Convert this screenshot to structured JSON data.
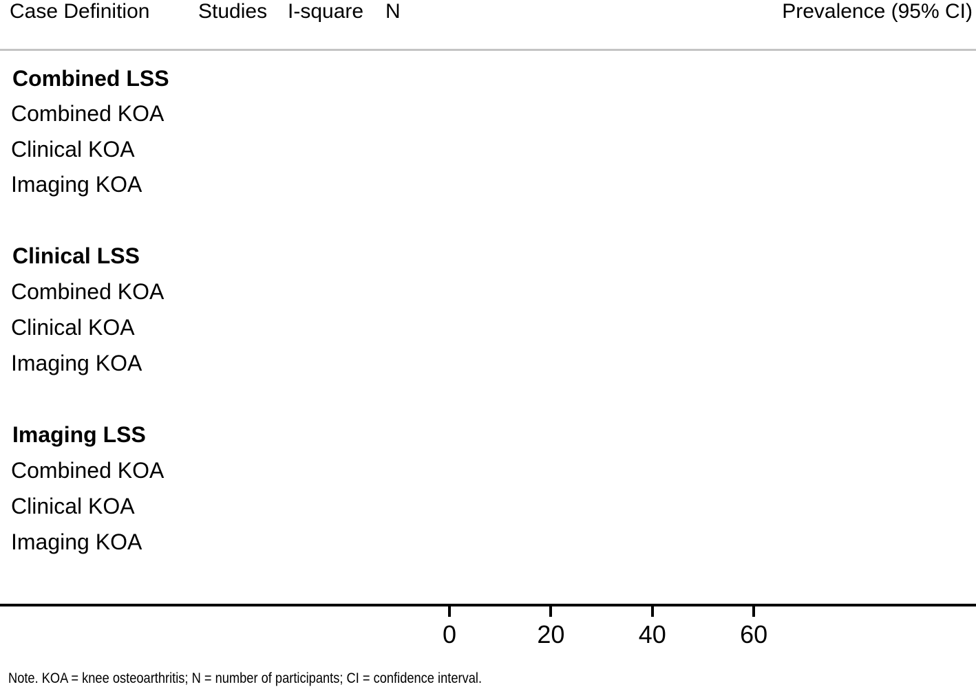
{
  "figure": {
    "header": {
      "case_definition": "Case Definition",
      "studies": "Studies",
      "i_square": "I-square",
      "n": "N",
      "prevalence": "Prevalence (95% CI)"
    },
    "note": "Note. KOA = knee osteoarthritis; N = number of participants; CI = confidence interval."
  },
  "rows": [
    {
      "label": "Combined LSS",
      "group": true
    },
    {
      "label": "Combined KOA",
      "group": false
    },
    {
      "label": "Clinical KOA",
      "group": false
    },
    {
      "label": "Imaging KOA",
      "group": false
    },
    {
      "label": "Clinical LSS",
      "group": true
    },
    {
      "label": "Combined KOA",
      "group": false
    },
    {
      "label": "Clinical KOA",
      "group": false
    },
    {
      "label": "Imaging KOA",
      "group": false
    },
    {
      "label": "Imaging LSS",
      "group": true
    },
    {
      "label": "Combined KOA",
      "group": false
    },
    {
      "label": "Clinical KOA",
      "group": false
    },
    {
      "label": "Imaging KOA",
      "group": false
    }
  ],
  "chart_data": {
    "type": "scatter",
    "title": "",
    "xlabel": "",
    "x_ticks": [
      0,
      20,
      40,
      60
    ],
    "categories": [
      "Combined LSS",
      "Combined KOA",
      "Clinical KOA",
      "Imaging KOA",
      "Clinical LSS",
      "Combined KOA",
      "Clinical KOA",
      "Imaging KOA",
      "Imaging LSS",
      "Combined KOA",
      "Clinical KOA",
      "Imaging KOA"
    ],
    "series": [],
    "empty_plot": true,
    "grid": false,
    "legend": false
  },
  "colors": {
    "text": "#000000",
    "divider": "#c4c4c4",
    "axis": "#000000"
  }
}
